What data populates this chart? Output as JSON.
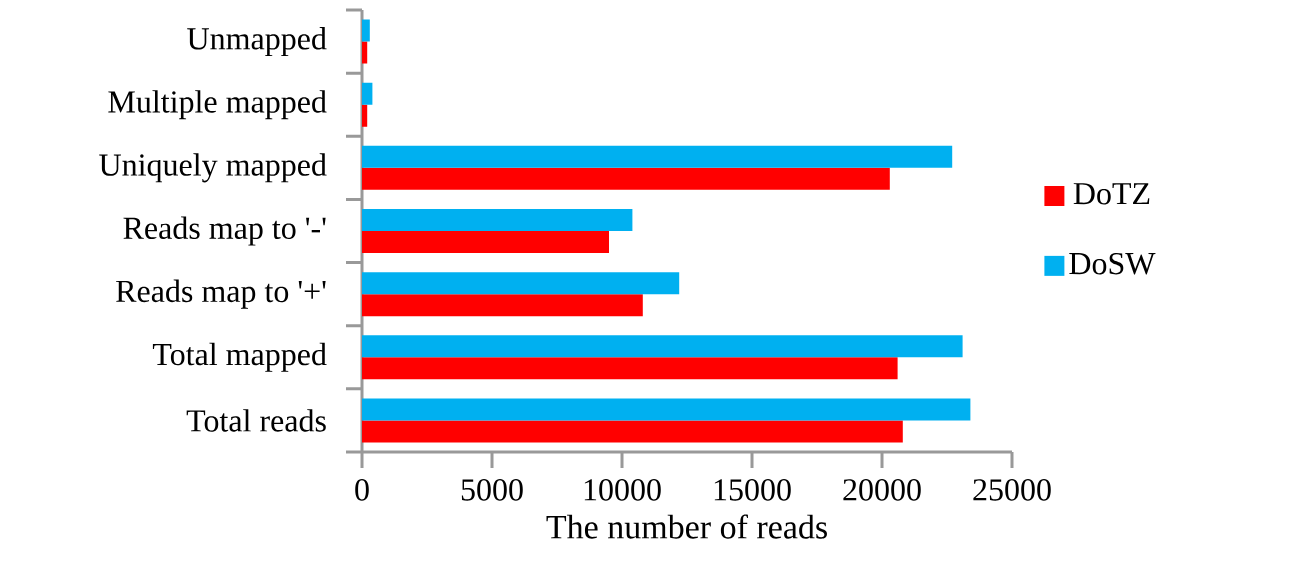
{
  "chart_data": {
    "type": "bar",
    "orientation": "horizontal",
    "xlabel": "The number of reads",
    "categories": [
      "Unmapped",
      "Multiple mapped",
      "Uniquely mapped",
      "Reads map to '-'",
      "Reads map to '+'",
      "Total mapped",
      "Total reads"
    ],
    "series": [
      {
        "name": "DoTZ",
        "color": "#ff0000",
        "values": [
          200,
          200,
          20300,
          9500,
          10800,
          20600,
          20800
        ]
      },
      {
        "name": "DoSW",
        "color": "#00b0f0",
        "values": [
          300,
          400,
          22700,
          10400,
          12200,
          23100,
          23400
        ]
      }
    ],
    "xlim": [
      0,
      25000
    ],
    "xticks": [
      0,
      5000,
      10000,
      15000,
      20000,
      25000
    ],
    "legend": "right"
  }
}
